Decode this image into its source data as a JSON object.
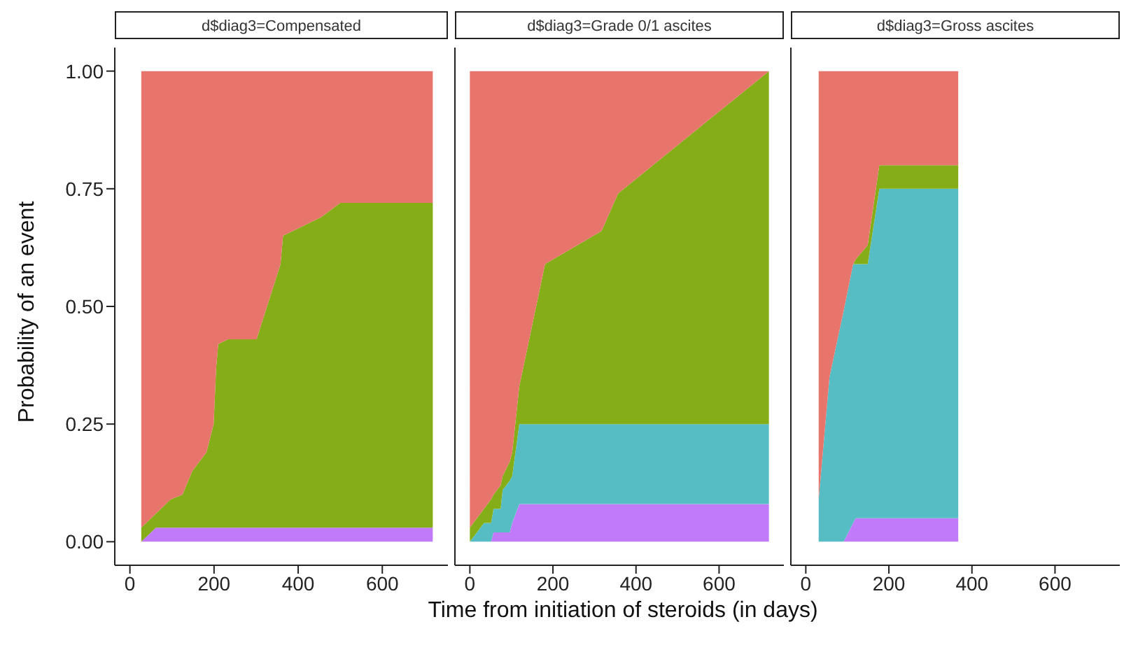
{
  "chart_data": [
    {
      "type": "area",
      "stacked": true,
      "title": "d$diag3=Compensated",
      "ylabel": "Probability of an event",
      "x": [
        27,
        62,
        97,
        125,
        148,
        182,
        199,
        205,
        210,
        233,
        301,
        358,
        364,
        455,
        500,
        720
      ],
      "series": [
        {
          "color": "#c17bfa",
          "values": [
            0,
            0.03,
            0.03,
            0.03,
            0.03,
            0.03,
            0.03,
            0.03,
            0.03,
            0.03,
            0.03,
            0.03,
            0.03,
            0.03,
            0.03,
            0.03
          ]
        },
        {
          "color": "#84ad17",
          "values": [
            0.03,
            0.03,
            0.06,
            0.07,
            0.12,
            0.16,
            0.22,
            0.34,
            0.39,
            0.4,
            0.4,
            0.56,
            0.62,
            0.66,
            0.69,
            0.69
          ]
        },
        {
          "color": "#e8756c",
          "values": [
            0.97,
            0.94,
            0.91,
            0.9,
            0.85,
            0.81,
            0.75,
            0.63,
            0.58,
            0.57,
            0.57,
            0.41,
            0.35,
            0.31,
            0.28,
            0.28
          ]
        }
      ],
      "xlim": [
        -36,
        756
      ],
      "xticks": [
        0,
        200,
        400,
        600
      ],
      "ylim": [
        -0.05,
        1.05
      ],
      "yticks": [
        {
          "value": 0,
          "label": "0.00"
        },
        {
          "value": 0.25,
          "label": "0.25"
        },
        {
          "value": 0.5,
          "label": "0.50"
        },
        {
          "value": 0.75,
          "label": "0.75"
        },
        {
          "value": 1,
          "label": "1.00"
        }
      ]
    },
    {
      "type": "area",
      "stacked": true,
      "title": "d$diag3=Grade 0/1 ascites",
      "xlabel": "Time from initiation of steroids (in days)",
      "x": [
        0,
        34,
        51,
        57,
        74,
        79,
        96,
        102,
        119,
        181,
        317,
        357,
        720
      ],
      "series": [
        {
          "color": "#c17bfa",
          "values": [
            0,
            0,
            0,
            0.02,
            0.02,
            0.02,
            0.02,
            0.04,
            0.08,
            0.08,
            0.08,
            0.08,
            0.08
          ]
        },
        {
          "color": "#56bdc4",
          "values": [
            0,
            0.04,
            0.04,
            0.05,
            0.05,
            0.09,
            0.11,
            0.1,
            0.17,
            0.17,
            0.17,
            0.17,
            0.17
          ]
        },
        {
          "color": "#84ad17",
          "values": [
            0.03,
            0.03,
            0.05,
            0.03,
            0.05,
            0.03,
            0.04,
            0.05,
            0.08,
            0.34,
            0.41,
            0.49,
            0.75
          ]
        },
        {
          "color": "#e8756c",
          "values": [
            0.97,
            0.93,
            0.91,
            0.9,
            0.88,
            0.86,
            0.83,
            0.81,
            0.67,
            0.41,
            0.34,
            0.26,
            0
          ]
        }
      ],
      "xlim": [
        -36,
        756
      ],
      "xticks": [
        0,
        200,
        400,
        600
      ],
      "ylim": [
        -0.05,
        1.05
      ],
      "tick_labels": "x"
    },
    {
      "type": "area",
      "stacked": true,
      "title": "d$diag3=Gross ascites",
      "x": [
        31,
        57,
        74,
        91,
        114,
        120,
        149,
        177,
        367
      ],
      "series": [
        {
          "color": "#c17bfa",
          "values": [
            0,
            0,
            0,
            0,
            0.04,
            0.05,
            0.05,
            0.05,
            0.05
          ]
        },
        {
          "color": "#56bdc4",
          "values": [
            0.09,
            0.35,
            0.42,
            0.49,
            0.55,
            0.54,
            0.54,
            0.7,
            0.7
          ]
        },
        {
          "color": "#84ad17",
          "values": [
            0,
            0,
            0,
            0,
            0,
            0.01,
            0.04,
            0.05,
            0.05
          ]
        },
        {
          "color": "#e8756c",
          "values": [
            0.91,
            0.65,
            0.58,
            0.51,
            0.41,
            0.4,
            0.37,
            0.2,
            0.2
          ]
        }
      ],
      "xlim": [
        -36,
        756
      ],
      "xticks": [
        0,
        200,
        400,
        600
      ],
      "ylim": [
        -0.05,
        1.05
      ],
      "tick_labels": "x"
    }
  ]
}
